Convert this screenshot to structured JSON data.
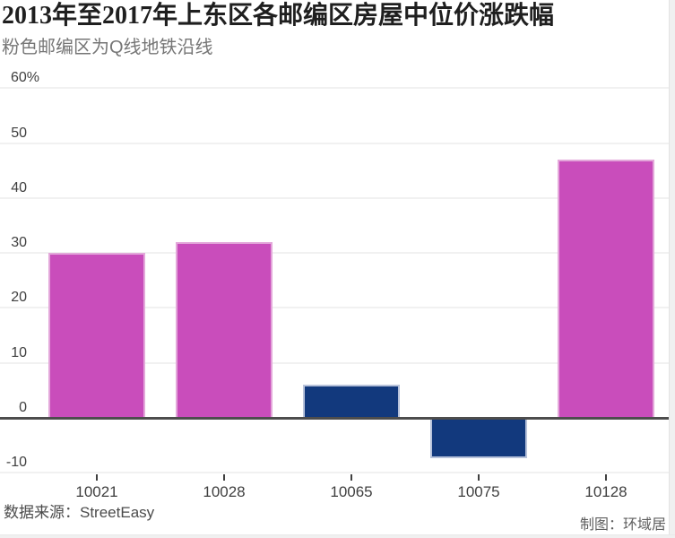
{
  "colors": {
    "pink": "#c94dbb",
    "blue": "#12397d",
    "pink_border": "#e3a7da",
    "blue_border": "#b7c2da",
    "gridline": "#f1f1f1",
    "zero_line": "#4d4d4d",
    "edge_strip": "#f0f0f0"
  },
  "chart_data": {
    "type": "bar",
    "title": "2013年至2017年上东区各邮编区房屋中位价涨跌幅",
    "subtitle": "粉色邮编区为Q线地铁沿线",
    "categories": [
      "10021",
      "10028",
      "10065",
      "10075",
      "10128"
    ],
    "values": [
      30,
      32,
      6,
      -7,
      47
    ],
    "unit": "%",
    "bar_colors": [
      "pink",
      "pink",
      "blue",
      "blue",
      "pink"
    ],
    "y_ticks": [
      60,
      50,
      40,
      30,
      20,
      10,
      0,
      -10
    ],
    "y_tick_labels": [
      "60%",
      "50",
      "40",
      "30",
      "20",
      "10",
      "0",
      "-10"
    ],
    "ylim": [
      -14,
      63
    ],
    "grid": "horizontal",
    "legend_position": "none",
    "xlabel": "",
    "ylabel": "",
    "source": "数据来源：StreetEasy",
    "credit": "制图：环域居"
  }
}
